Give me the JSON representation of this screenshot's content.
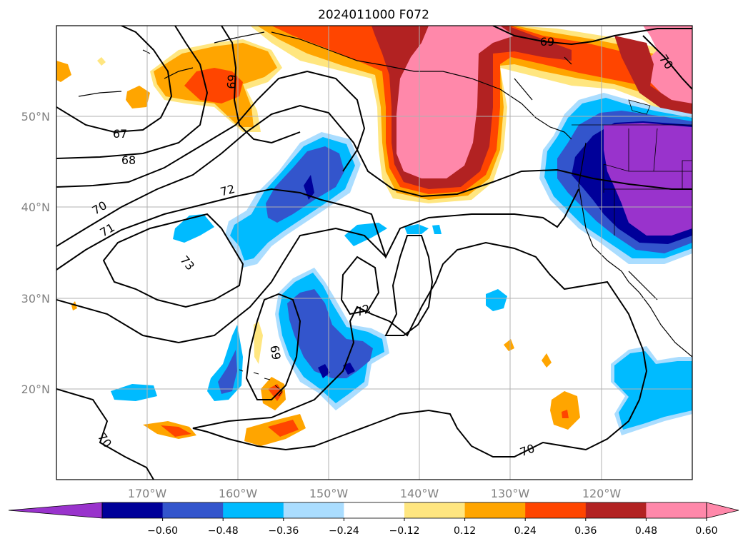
{
  "title": "2024011000 F072",
  "lat_ticks": [
    "50°N",
    "40°N",
    "30°N",
    "20°N"
  ],
  "lon_ticks": [
    "170°W",
    "160°W",
    "150°W",
    "140°W",
    "130°W",
    "120°W"
  ],
  "colorbar": {
    "labels": [
      "−0.60",
      "−0.48",
      "−0.36",
      "−0.24",
      "−0.12",
      "0.12",
      "0.24",
      "0.36",
      "0.48",
      "0.60"
    ],
    "colors": [
      "#9933cc",
      "#000099",
      "#3355cc",
      "#00bbff",
      "#aaddff",
      "#ffffff",
      "#ffe680",
      "#ffa500",
      "#ff4500",
      "#b22222",
      "#ff88aa",
      "#ff88aa"
    ]
  },
  "contour_labels": [
    "67",
    "68",
    "69",
    "69",
    "69",
    "70",
    "70",
    "70",
    "70",
    "71",
    "72",
    "72",
    "73"
  ]
}
